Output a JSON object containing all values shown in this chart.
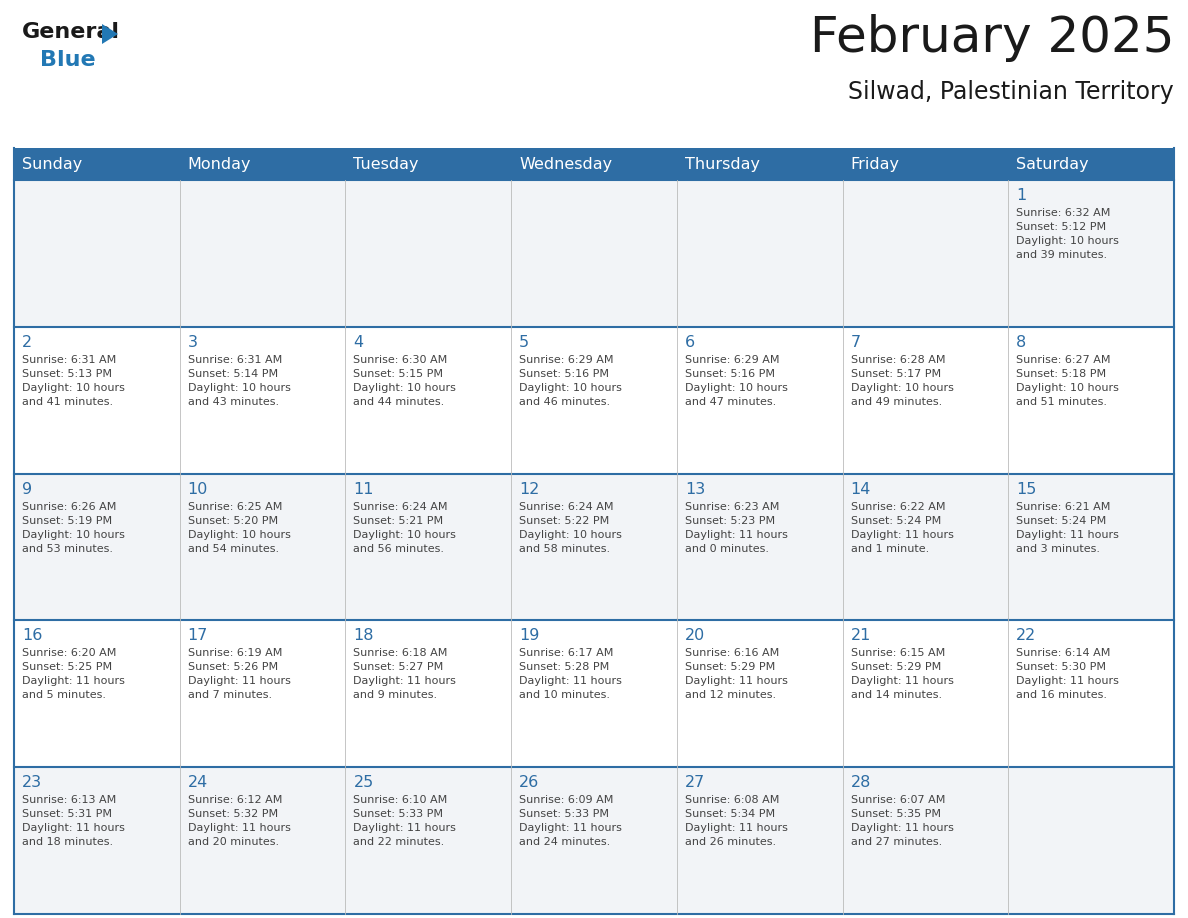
{
  "title": "February 2025",
  "subtitle": "Silwad, Palestinian Territory",
  "days_of_week": [
    "Sunday",
    "Monday",
    "Tuesday",
    "Wednesday",
    "Thursday",
    "Friday",
    "Saturday"
  ],
  "header_bg": "#2E6DA4",
  "header_text": "#FFFFFF",
  "cell_bg_light": "#F2F4F7",
  "cell_bg_white": "#FFFFFF",
  "cell_border_color": "#2E6DA4",
  "cell_inner_border": "#BBBBBB",
  "day_number_color": "#2E6DA4",
  "info_color": "#444444",
  "title_color": "#1a1a1a",
  "subtitle_color": "#1a1a1a",
  "logo_black": "#1a1a1a",
  "logo_blue": "#2278B4",
  "logo_triangle": "#2278B4",
  "weeks": [
    {
      "days": [
        {
          "date": "",
          "info": ""
        },
        {
          "date": "",
          "info": ""
        },
        {
          "date": "",
          "info": ""
        },
        {
          "date": "",
          "info": ""
        },
        {
          "date": "",
          "info": ""
        },
        {
          "date": "",
          "info": ""
        },
        {
          "date": "1",
          "info": "Sunrise: 6:32 AM\nSunset: 5:12 PM\nDaylight: 10 hours\nand 39 minutes."
        }
      ]
    },
    {
      "days": [
        {
          "date": "2",
          "info": "Sunrise: 6:31 AM\nSunset: 5:13 PM\nDaylight: 10 hours\nand 41 minutes."
        },
        {
          "date": "3",
          "info": "Sunrise: 6:31 AM\nSunset: 5:14 PM\nDaylight: 10 hours\nand 43 minutes."
        },
        {
          "date": "4",
          "info": "Sunrise: 6:30 AM\nSunset: 5:15 PM\nDaylight: 10 hours\nand 44 minutes."
        },
        {
          "date": "5",
          "info": "Sunrise: 6:29 AM\nSunset: 5:16 PM\nDaylight: 10 hours\nand 46 minutes."
        },
        {
          "date": "6",
          "info": "Sunrise: 6:29 AM\nSunset: 5:16 PM\nDaylight: 10 hours\nand 47 minutes."
        },
        {
          "date": "7",
          "info": "Sunrise: 6:28 AM\nSunset: 5:17 PM\nDaylight: 10 hours\nand 49 minutes."
        },
        {
          "date": "8",
          "info": "Sunrise: 6:27 AM\nSunset: 5:18 PM\nDaylight: 10 hours\nand 51 minutes."
        }
      ]
    },
    {
      "days": [
        {
          "date": "9",
          "info": "Sunrise: 6:26 AM\nSunset: 5:19 PM\nDaylight: 10 hours\nand 53 minutes."
        },
        {
          "date": "10",
          "info": "Sunrise: 6:25 AM\nSunset: 5:20 PM\nDaylight: 10 hours\nand 54 minutes."
        },
        {
          "date": "11",
          "info": "Sunrise: 6:24 AM\nSunset: 5:21 PM\nDaylight: 10 hours\nand 56 minutes."
        },
        {
          "date": "12",
          "info": "Sunrise: 6:24 AM\nSunset: 5:22 PM\nDaylight: 10 hours\nand 58 minutes."
        },
        {
          "date": "13",
          "info": "Sunrise: 6:23 AM\nSunset: 5:23 PM\nDaylight: 11 hours\nand 0 minutes."
        },
        {
          "date": "14",
          "info": "Sunrise: 6:22 AM\nSunset: 5:24 PM\nDaylight: 11 hours\nand 1 minute."
        },
        {
          "date": "15",
          "info": "Sunrise: 6:21 AM\nSunset: 5:24 PM\nDaylight: 11 hours\nand 3 minutes."
        }
      ]
    },
    {
      "days": [
        {
          "date": "16",
          "info": "Sunrise: 6:20 AM\nSunset: 5:25 PM\nDaylight: 11 hours\nand 5 minutes."
        },
        {
          "date": "17",
          "info": "Sunrise: 6:19 AM\nSunset: 5:26 PM\nDaylight: 11 hours\nand 7 minutes."
        },
        {
          "date": "18",
          "info": "Sunrise: 6:18 AM\nSunset: 5:27 PM\nDaylight: 11 hours\nand 9 minutes."
        },
        {
          "date": "19",
          "info": "Sunrise: 6:17 AM\nSunset: 5:28 PM\nDaylight: 11 hours\nand 10 minutes."
        },
        {
          "date": "20",
          "info": "Sunrise: 6:16 AM\nSunset: 5:29 PM\nDaylight: 11 hours\nand 12 minutes."
        },
        {
          "date": "21",
          "info": "Sunrise: 6:15 AM\nSunset: 5:29 PM\nDaylight: 11 hours\nand 14 minutes."
        },
        {
          "date": "22",
          "info": "Sunrise: 6:14 AM\nSunset: 5:30 PM\nDaylight: 11 hours\nand 16 minutes."
        }
      ]
    },
    {
      "days": [
        {
          "date": "23",
          "info": "Sunrise: 6:13 AM\nSunset: 5:31 PM\nDaylight: 11 hours\nand 18 minutes."
        },
        {
          "date": "24",
          "info": "Sunrise: 6:12 AM\nSunset: 5:32 PM\nDaylight: 11 hours\nand 20 minutes."
        },
        {
          "date": "25",
          "info": "Sunrise: 6:10 AM\nSunset: 5:33 PM\nDaylight: 11 hours\nand 22 minutes."
        },
        {
          "date": "26",
          "info": "Sunrise: 6:09 AM\nSunset: 5:33 PM\nDaylight: 11 hours\nand 24 minutes."
        },
        {
          "date": "27",
          "info": "Sunrise: 6:08 AM\nSunset: 5:34 PM\nDaylight: 11 hours\nand 26 minutes."
        },
        {
          "date": "28",
          "info": "Sunrise: 6:07 AM\nSunset: 5:35 PM\nDaylight: 11 hours\nand 27 minutes."
        },
        {
          "date": "",
          "info": ""
        }
      ]
    }
  ]
}
